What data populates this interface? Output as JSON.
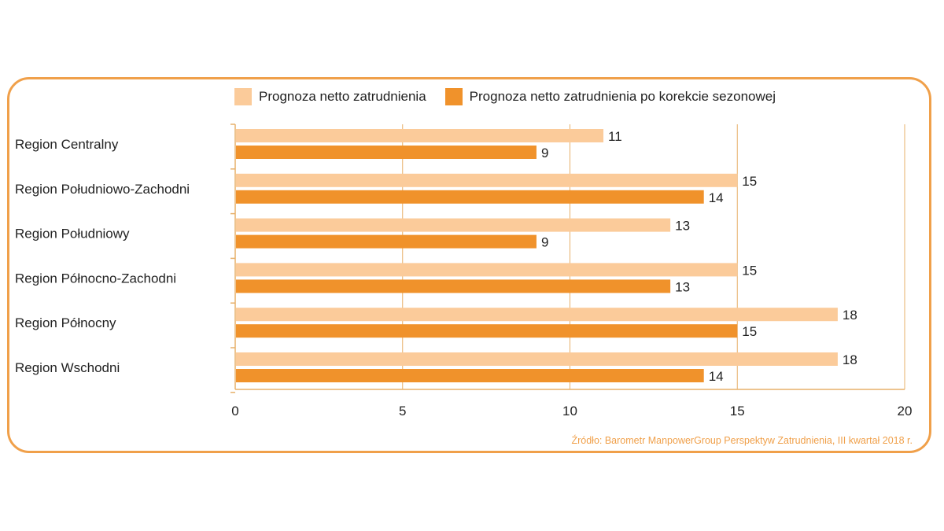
{
  "legend": {
    "light_label": "Prognoza netto zatrudnienia",
    "dark_label": "Prognoza netto zatrudnienia po korekcie sezonowej"
  },
  "source": "Źródło: Barometr ManpowerGroup Perspektyw Zatrudnienia, III kwartał 2018 r.",
  "colors": {
    "light": "#FBCB9A",
    "dark": "#F0922B",
    "frame": "#F0A04A",
    "grid": "#E7B06A"
  },
  "chart_data": {
    "type": "bar",
    "orientation": "horizontal",
    "categories": [
      "Region Centralny",
      "Region Południowo-Zachodni",
      "Region Południowy",
      "Region Północno-Zachodni",
      "Region Północny",
      "Region Wschodni"
    ],
    "series": [
      {
        "name": "Prognoza netto zatrudnienia",
        "values": [
          11,
          15,
          13,
          15,
          18,
          18
        ]
      },
      {
        "name": "Prognoza netto zatrudnienia po korekcie sezonowej",
        "values": [
          9,
          14,
          9,
          13,
          15,
          14
        ]
      }
    ],
    "xlim": [
      0,
      20
    ],
    "xticks": [
      0,
      5,
      10,
      15,
      20
    ],
    "grid": true,
    "legend_position": "top"
  }
}
